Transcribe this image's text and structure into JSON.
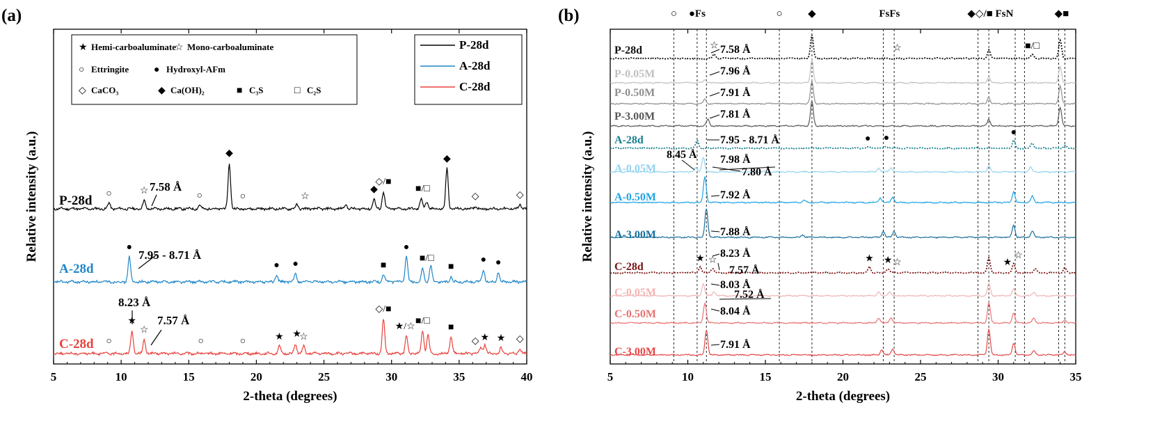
{
  "chart_data": [
    {
      "type": "line",
      "panel_label": "(a)",
      "xlabel": "2-theta (degrees)",
      "ylabel": "Relative intensity (a.u.)",
      "xlim": [
        5,
        40
      ],
      "x_ticks": [
        "5",
        "10",
        "15",
        "20",
        "25",
        "30",
        "35",
        "40"
      ],
      "legend_markers": {
        "row1": [
          {
            "symbol": "★",
            "text": "Hemi-carboaluminate"
          },
          {
            "symbol": "☆",
            "text": "Mono-carboaluminate"
          }
        ],
        "row2": [
          {
            "symbol": "○",
            "text": "Ettringite"
          },
          {
            "symbol": "●",
            "text": "Hydroxyl-AFm"
          }
        ],
        "row3": [
          {
            "symbol": "◇",
            "text": "CaCO₃"
          },
          {
            "symbol": "◆",
            "text": "Ca(OH)₂"
          },
          {
            "symbol": "■",
            "text": "C₃S"
          },
          {
            "symbol": "□",
            "text": "C₂S"
          }
        ]
      },
      "series": [
        {
          "name": "P-28d",
          "color": "#000000",
          "peaks": [
            [
              9.1,
              8
            ],
            [
              11.7,
              12
            ],
            [
              15.8,
              5
            ],
            [
              18.0,
              66
            ],
            [
              23.0,
              6
            ],
            [
              26.6,
              7
            ],
            [
              28.7,
              14
            ],
            [
              29.4,
              25
            ],
            [
              32.2,
              15
            ],
            [
              32.6,
              10
            ],
            [
              34.1,
              58
            ],
            [
              36.2,
              4
            ],
            [
              39.5,
              6
            ]
          ]
        },
        {
          "name": "A-28d",
          "color": "#1f86c8",
          "peaks": [
            [
              10.6,
              36
            ],
            [
              21.5,
              10
            ],
            [
              22.9,
              12
            ],
            [
              29.4,
              10
            ],
            [
              31.1,
              36
            ],
            [
              32.3,
              20
            ],
            [
              32.9,
              24
            ],
            [
              34.4,
              8
            ],
            [
              36.8,
              18
            ],
            [
              37.9,
              14
            ]
          ]
        },
        {
          "name": "C-28d",
          "color": "#e8413c",
          "peaks": [
            [
              10.8,
              33
            ],
            [
              11.7,
              20
            ],
            [
              21.7,
              10
            ],
            [
              22.9,
              14
            ],
            [
              23.5,
              10
            ],
            [
              29.4,
              50
            ],
            [
              31.1,
              25
            ],
            [
              32.3,
              33
            ],
            [
              32.7,
              28
            ],
            [
              34.4,
              24
            ],
            [
              36.6,
              9
            ],
            [
              36.9,
              13
            ],
            [
              38.1,
              8
            ],
            [
              39.5,
              7
            ]
          ]
        }
      ],
      "annotations": [
        {
          "text": "7.58 Å"
        },
        {
          "text": "7.95 - 8.71 Å"
        },
        {
          "text": "8.23 Å"
        },
        {
          "text": "7.57 Å"
        }
      ],
      "marker_glyphs": [
        {
          "series": "P-28d",
          "x": 9.1,
          "symbol": "○"
        },
        {
          "series": "P-28d",
          "x": 11.7,
          "symbol": "☆"
        },
        {
          "series": "P-28d",
          "x": 15.8,
          "symbol": "○"
        },
        {
          "series": "P-28d",
          "x": 18.0,
          "symbol": "◆"
        },
        {
          "series": "P-28d",
          "x": 19.0,
          "symbol": "○"
        },
        {
          "series": "P-28d",
          "x": 23.6,
          "symbol": "☆"
        },
        {
          "series": "P-28d",
          "x": 28.7,
          "symbol": "◆"
        },
        {
          "series": "P-28d",
          "x": 29.4,
          "symbol": "◇/■"
        },
        {
          "series": "P-28d",
          "x": 32.3,
          "symbol": "■/□"
        },
        {
          "series": "P-28d",
          "x": 34.1,
          "symbol": "◆"
        },
        {
          "series": "P-28d",
          "x": 36.2,
          "symbol": "◇"
        },
        {
          "series": "P-28d",
          "x": 39.5,
          "symbol": "◇"
        },
        {
          "series": "A-28d",
          "x": 10.6,
          "symbol": "●"
        },
        {
          "series": "A-28d",
          "x": 21.5,
          "symbol": "●"
        },
        {
          "series": "A-28d",
          "x": 22.9,
          "symbol": "●"
        },
        {
          "series": "A-28d",
          "x": 29.4,
          "symbol": "■"
        },
        {
          "series": "A-28d",
          "x": 31.1,
          "symbol": "●"
        },
        {
          "series": "A-28d",
          "x": 32.6,
          "symbol": "■/□"
        },
        {
          "series": "A-28d",
          "x": 34.4,
          "symbol": "■"
        },
        {
          "series": "A-28d",
          "x": 36.8,
          "symbol": "●"
        },
        {
          "series": "A-28d",
          "x": 37.9,
          "symbol": "●"
        },
        {
          "series": "C-28d",
          "x": 9.1,
          "symbol": "○"
        },
        {
          "series": "C-28d",
          "x": 10.8,
          "symbol": "★"
        },
        {
          "series": "C-28d",
          "x": 11.7,
          "symbol": "☆"
        },
        {
          "series": "C-28d",
          "x": 15.9,
          "symbol": "○"
        },
        {
          "series": "C-28d",
          "x": 19.0,
          "symbol": "○"
        },
        {
          "series": "C-28d",
          "x": 21.7,
          "symbol": "★"
        },
        {
          "series": "C-28d",
          "x": 23.0,
          "symbol": "★"
        },
        {
          "series": "C-28d",
          "x": 23.5,
          "symbol": "☆"
        },
        {
          "series": "C-28d",
          "x": 29.4,
          "symbol": "◇/■"
        },
        {
          "series": "C-28d",
          "x": 31.0,
          "symbol": "★/☆"
        },
        {
          "series": "C-28d",
          "x": 32.3,
          "symbol": "■/□"
        },
        {
          "series": "C-28d",
          "x": 34.4,
          "symbol": "■"
        },
        {
          "series": "C-28d",
          "x": 36.2,
          "symbol": "◇"
        },
        {
          "series": "C-28d",
          "x": 36.9,
          "symbol": "★"
        },
        {
          "series": "C-28d",
          "x": 38.1,
          "symbol": "★"
        },
        {
          "series": "C-28d",
          "x": 39.5,
          "symbol": "◇"
        }
      ]
    },
    {
      "type": "line",
      "panel_label": "(b)",
      "xlabel": "2-theta (degrees)",
      "ylabel": "Relative intensity (a.u.)",
      "xlim": [
        5,
        35
      ],
      "x_ticks": [
        "5",
        "10",
        "15",
        "20",
        "25",
        "30",
        "35"
      ],
      "reference_lines_x": [
        9.1,
        10.6,
        11.2,
        15.9,
        18.0,
        22.6,
        23.3,
        28.7,
        29.4,
        31.1,
        31.7,
        33.9,
        34.3
      ],
      "top_labels": [
        {
          "x": 9.1,
          "text": "○"
        },
        {
          "x": 10.6,
          "text": "●Fs"
        },
        {
          "x": 15.9,
          "text": "○"
        },
        {
          "x": 18.0,
          "text": "◆"
        },
        {
          "x": 23.0,
          "text": "FsFs"
        },
        {
          "x": 29.5,
          "text": "◆◇/■ FsN"
        },
        {
          "x": 34.1,
          "text": "◆■"
        }
      ],
      "series": [
        {
          "name": "P-28d",
          "color": "#111111",
          "dotted": true,
          "peaks": [
            [
              11.7,
              9
            ],
            [
              18.0,
              48
            ],
            [
              29.4,
              17
            ],
            [
              32.2,
              8
            ],
            [
              34.0,
              37
            ]
          ]
        },
        {
          "name": "P-0.05M",
          "color": "#c0c0c0",
          "dotted": false,
          "peaks": [
            [
              11.1,
              6
            ],
            [
              18.0,
              46
            ],
            [
              29.4,
              12
            ],
            [
              34.0,
              32
            ]
          ]
        },
        {
          "name": "P-0.50M",
          "color": "#8f8f8f",
          "dotted": false,
          "peaks": [
            [
              11.1,
              9
            ],
            [
              18.0,
              46
            ],
            [
              29.4,
              13
            ],
            [
              34.0,
              35
            ]
          ]
        },
        {
          "name": "P-3.00M",
          "color": "#585858",
          "dotted": false,
          "peaks": [
            [
              11.3,
              14
            ],
            [
              18.0,
              50
            ],
            [
              29.4,
              13
            ],
            [
              34.0,
              38
            ]
          ]
        },
        {
          "name": "A-28d",
          "color": "#17808d",
          "dotted": true,
          "peaks": [
            [
              10.6,
              15
            ],
            [
              21.6,
              3
            ],
            [
              22.8,
              4
            ],
            [
              31.0,
              15
            ],
            [
              32.2,
              10
            ],
            [
              34.3,
              6
            ]
          ]
        },
        {
          "name": "A-0.05M",
          "color": "#92d3ef",
          "dotted": false,
          "peaks": [
            [
              10.5,
              8
            ],
            [
              11.0,
              30
            ],
            [
              22.3,
              8
            ],
            [
              23.1,
              9
            ],
            [
              29.4,
              12
            ],
            [
              32.1,
              9
            ]
          ]
        },
        {
          "name": "A-0.50M",
          "color": "#1ea3e3",
          "dotted": false,
          "peaks": [
            [
              11.1,
              52
            ],
            [
              17.5,
              5
            ],
            [
              22.4,
              9
            ],
            [
              23.2,
              11
            ],
            [
              31.0,
              22
            ],
            [
              32.2,
              13
            ]
          ]
        },
        {
          "name": "A-3.00M",
          "color": "#1a6f9c",
          "dotted": false,
          "peaks": [
            [
              11.2,
              58
            ],
            [
              17.4,
              5
            ],
            [
              22.6,
              12
            ],
            [
              23.3,
              12
            ],
            [
              31.0,
              24
            ],
            [
              32.2,
              13
            ]
          ]
        },
        {
          "name": "C-28d",
          "color": "#7a1515",
          "dotted": true,
          "peaks": [
            [
              10.8,
              12
            ],
            [
              11.6,
              9
            ],
            [
              21.7,
              12
            ],
            [
              22.9,
              8
            ],
            [
              29.4,
              30
            ],
            [
              31.0,
              18
            ],
            [
              32.4,
              9
            ],
            [
              34.3,
              10
            ]
          ]
        },
        {
          "name": "C-0.05M",
          "color": "#f1b4b4",
          "dotted": false,
          "peaks": [
            [
              11.0,
              24
            ],
            [
              11.7,
              9
            ],
            [
              22.3,
              8
            ],
            [
              23.0,
              9
            ],
            [
              29.4,
              24
            ],
            [
              31.0,
              14
            ],
            [
              32.3,
              7
            ]
          ]
        },
        {
          "name": "C-0.50M",
          "color": "#ea7272",
          "dotted": false,
          "peaks": [
            [
              11.1,
              40
            ],
            [
              22.3,
              10
            ],
            [
              23.1,
              11
            ],
            [
              29.4,
              40
            ],
            [
              31.0,
              20
            ],
            [
              32.3,
              10
            ],
            [
              34.3,
              6
            ]
          ]
        },
        {
          "name": "C-3.00M",
          "color": "#e4494a",
          "dotted": false,
          "peaks": [
            [
              11.2,
              50
            ],
            [
              22.5,
              10
            ],
            [
              23.2,
              12
            ],
            [
              29.4,
              52
            ],
            [
              31.0,
              24
            ],
            [
              32.3,
              9
            ],
            [
              34.3,
              6
            ]
          ]
        }
      ],
      "annotations": [
        {
          "series": "P-28d",
          "text": "7.58 Å"
        },
        {
          "series": "P-0.05M",
          "text": "7.96 Å"
        },
        {
          "series": "P-0.50M",
          "text": "7.91 Å"
        },
        {
          "series": "P-3.00M",
          "text": "7.81 Å"
        },
        {
          "series": "A-28d",
          "text": "7.95 - 8.71 Å"
        },
        {
          "series": "A-0.05M",
          "text": "8.45 Å"
        },
        {
          "series": "A-0.05M",
          "text": "7.98 Å"
        },
        {
          "series": "A-0.05M",
          "text": "7.80 Å"
        },
        {
          "series": "A-0.50M",
          "text": "7.92 Å"
        },
        {
          "series": "A-3.00M",
          "text": "7.88 Å"
        },
        {
          "series": "C-28d",
          "text": "8.23 Å"
        },
        {
          "series": "C-28d",
          "text": "7.57 Å"
        },
        {
          "series": "C-0.05M",
          "text": "8.03 Å"
        },
        {
          "series": "C-0.05M",
          "text": "7.52 Å"
        },
        {
          "series": "C-0.50M",
          "text": "8.04 Å"
        },
        {
          "series": "C-3.00M",
          "text": "7.91 Å"
        }
      ],
      "marker_glyphs": [
        {
          "series": "P-28d",
          "x": 11.7,
          "symbol": "☆"
        },
        {
          "series": "P-28d",
          "x": 23.5,
          "symbol": "☆"
        },
        {
          "series": "P-28d",
          "x": 32.2,
          "symbol": "■/□"
        },
        {
          "series": "A-28d",
          "x": 21.6,
          "symbol": "●"
        },
        {
          "series": "A-28d",
          "x": 22.8,
          "symbol": "●"
        },
        {
          "series": "A-28d",
          "x": 31.0,
          "symbol": "●"
        },
        {
          "series": "C-28d",
          "x": 10.8,
          "symbol": "★"
        },
        {
          "series": "C-28d",
          "x": 11.6,
          "symbol": "☆"
        },
        {
          "series": "C-28d",
          "x": 21.7,
          "symbol": "★"
        },
        {
          "series": "C-28d",
          "x": 22.9,
          "symbol": "★"
        },
        {
          "series": "C-28d",
          "x": 23.5,
          "symbol": "☆"
        },
        {
          "series": "C-28d",
          "x": 30.6,
          "symbol": "★"
        },
        {
          "series": "C-28d",
          "x": 31.3,
          "symbol": "☆"
        }
      ]
    }
  ]
}
